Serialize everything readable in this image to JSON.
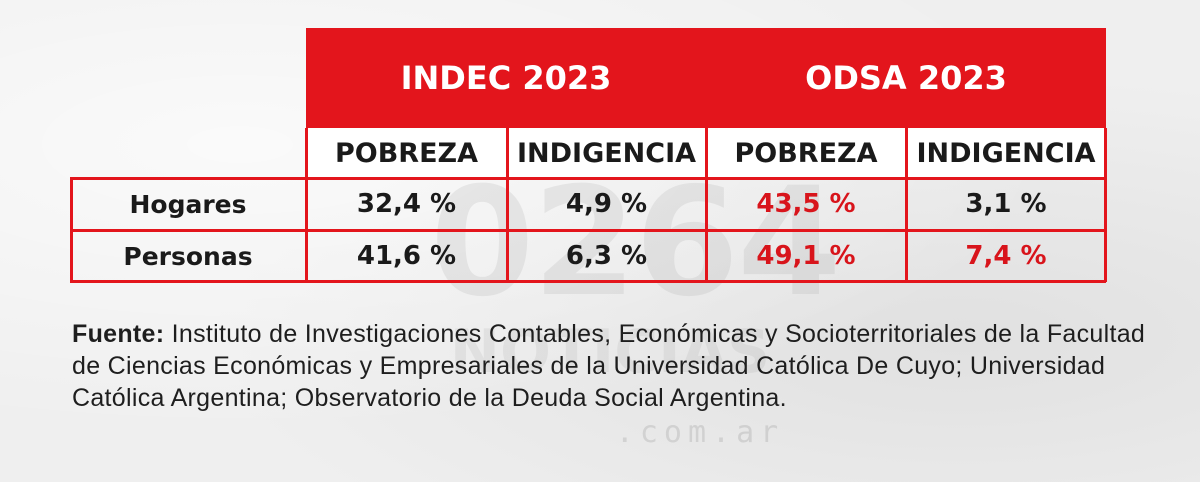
{
  "watermark": {
    "big": "0264",
    "mid": "NOTICIAS",
    "small": ".com.ar"
  },
  "colors": {
    "accent": "#e3151c",
    "highlight_text": "#d8141b",
    "text": "#1a1a1a",
    "background": "#efefef"
  },
  "chart_data": {
    "type": "table",
    "groups": [
      {
        "label": "INDEC 2023",
        "columns": [
          "POBREZA",
          "INDIGENCIA"
        ]
      },
      {
        "label": "ODSA 2023",
        "columns": [
          "POBREZA",
          "INDIGENCIA"
        ]
      }
    ],
    "rows": [
      {
        "label": "Hogares",
        "values": [
          "32,4 %",
          "4,9 %",
          "43,5 %",
          "3,1 %"
        ],
        "highlight": [
          false,
          false,
          true,
          false
        ]
      },
      {
        "label": "Personas",
        "values": [
          "41,6 %",
          "6,3 %",
          "49,1 %",
          "7,4 %"
        ],
        "highlight": [
          false,
          false,
          true,
          true
        ]
      }
    ]
  },
  "source": {
    "label": "Fuente:",
    "text": " Instituto de Investigaciones Contables, Económicas y Socioterritoriales de la Facultad de Ciencias Económicas y Empresariales de la Universidad Católica De Cuyo; Universidad Católica Argentina; Observatorio de la Deuda Social Argentina."
  }
}
